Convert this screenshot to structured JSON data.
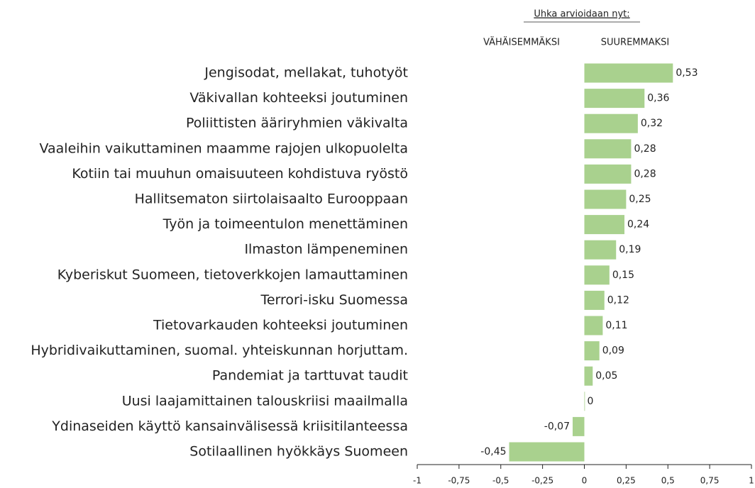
{
  "chart_data": {
    "type": "barh",
    "title": "Uhka arvioidaan nyt:",
    "annotations": [
      "VÄHÄISEMMÄKSI",
      "SUUREMMAKSI"
    ],
    "categories": [
      "Jengisodat, mellakat, tuhotyöt",
      "Väkivallan kohteeksi joutuminen",
      "Poliittisten ääriryhmien väkivalta",
      "Vaaleihin vaikuttaminen maamme rajojen ulkopuolelta",
      "Kotiin tai muuhun omaisuuteen kohdistuva ryöstö",
      "Hallitsematon siirtolaisaalto Eurooppaan",
      "Työn ja toimeentulon menettäminen",
      "Ilmaston lämpeneminen",
      "Kyberiskut Suomeen, tietoverkkojen lamauttaminen",
      "Terrori-isku Suomessa",
      "Tietovarkauden kohteeksi joutuminen",
      "Hybridivaikuttaminen, suomal. yhteiskunnan horjuttam.",
      "Pandemiat ja tarttuvat taudit",
      "Uusi laajamittainen talouskriisi maailmalla",
      "Ydinaseiden käyttö kansainvälisessä kriisitilanteessa",
      "Sotilaallinen hyökkäys Suomeen"
    ],
    "values": [
      0.53,
      0.36,
      0.32,
      0.28,
      0.28,
      0.25,
      0.24,
      0.19,
      0.15,
      0.12,
      0.11,
      0.09,
      0.05,
      0,
      -0.07,
      -0.45
    ],
    "value_labels": [
      "0,53",
      "0,36",
      "0,32",
      "0,28",
      "0,28",
      "0,25",
      "0,24",
      "0,19",
      "0,15",
      "0,12",
      "0,11",
      "0,09",
      "0,05",
      "0",
      "-0,07",
      "-0,45"
    ],
    "color": "#a9d18e",
    "xlim": [
      -1,
      1
    ],
    "xticks": [
      -1,
      {
        "value": -0.75,
        "label": "-0,75"
      },
      {
        "value": -0.5,
        "label": "-0,5"
      },
      {
        "value": -0.25,
        "label": "-0,25"
      },
      0,
      {
        "value": 0.25,
        "label": "0,25"
      },
      {
        "value": 0.5,
        "label": "0,5"
      },
      {
        "value": 0.75,
        "label": "0,75"
      },
      1
    ]
  }
}
